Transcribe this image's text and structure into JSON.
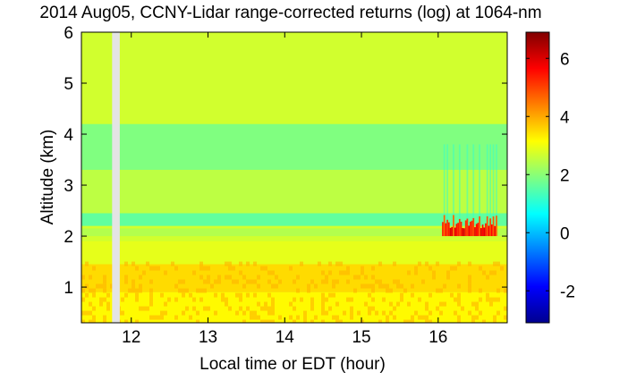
{
  "chart_data": {
    "type": "heatmap",
    "title": "2014 Aug05, CCNY-Lidar range-corrected returns (log) at 1064-nm",
    "xlabel": "Local time or EDT (hour)",
    "ylabel": "Altitude (km)",
    "xlim": [
      11.35,
      16.9
    ],
    "ylim": [
      0.3,
      6.0
    ],
    "x_ticks": [
      12,
      13,
      14,
      15,
      16
    ],
    "y_ticks": [
      1,
      2,
      3,
      4,
      5,
      6
    ],
    "colorbar": {
      "range": [
        -3.1,
        6.9
      ],
      "ticks": [
        -2,
        0,
        2,
        4,
        6
      ],
      "colormap": "jet",
      "colors": [
        "#00008f",
        "#0000ff",
        "#0080ff",
        "#00ffff",
        "#80ff80",
        "#ffff00",
        "#ff8000",
        "#ff0000",
        "#800000"
      ]
    },
    "data_gap": {
      "x_start": 11.75,
      "x_end": 11.85,
      "color": "#e4e4e4"
    },
    "value_bands": [
      {
        "alt_range": [
          0.3,
          0.9
        ],
        "value": 3.2
      },
      {
        "alt_range": [
          0.9,
          1.45
        ],
        "value": 3.5
      },
      {
        "alt_range": [
          1.45,
          1.9
        ],
        "value": 2.9
      },
      {
        "alt_range": [
          2.0,
          2.15
        ],
        "value": 2.4
      },
      {
        "alt_range": [
          2.2,
          2.45
        ],
        "value": 1.6
      },
      {
        "alt_range": [
          2.45,
          3.3
        ],
        "value": 2.5
      },
      {
        "alt_range": [
          3.3,
          4.2
        ],
        "value": 1.9
      },
      {
        "alt_range": [
          4.2,
          6.0
        ],
        "value": 2.7
      }
    ],
    "cloud": {
      "x_range": [
        16.05,
        16.75
      ],
      "alt_range": [
        2.0,
        2.45
      ],
      "value": 6.0
    },
    "x": [
      11.35,
      11.55,
      11.75,
      11.95,
      12.15,
      12.35,
      12.55,
      12.75,
      12.95,
      13.15,
      13.35,
      13.55,
      13.75,
      13.95,
      14.15,
      14.35,
      14.55,
      14.75,
      14.95,
      15.15,
      15.35,
      15.55,
      15.75,
      15.95,
      16.15,
      16.35,
      16.55,
      16.75,
      16.9
    ],
    "y": [
      0.3,
      0.6,
      0.9,
      1.2,
      1.5,
      1.8,
      2.1,
      2.4,
      2.7,
      3.0,
      3.3,
      3.6,
      3.9,
      4.2,
      4.5,
      4.8,
      5.1,
      5.4,
      5.7,
      6.0
    ]
  }
}
